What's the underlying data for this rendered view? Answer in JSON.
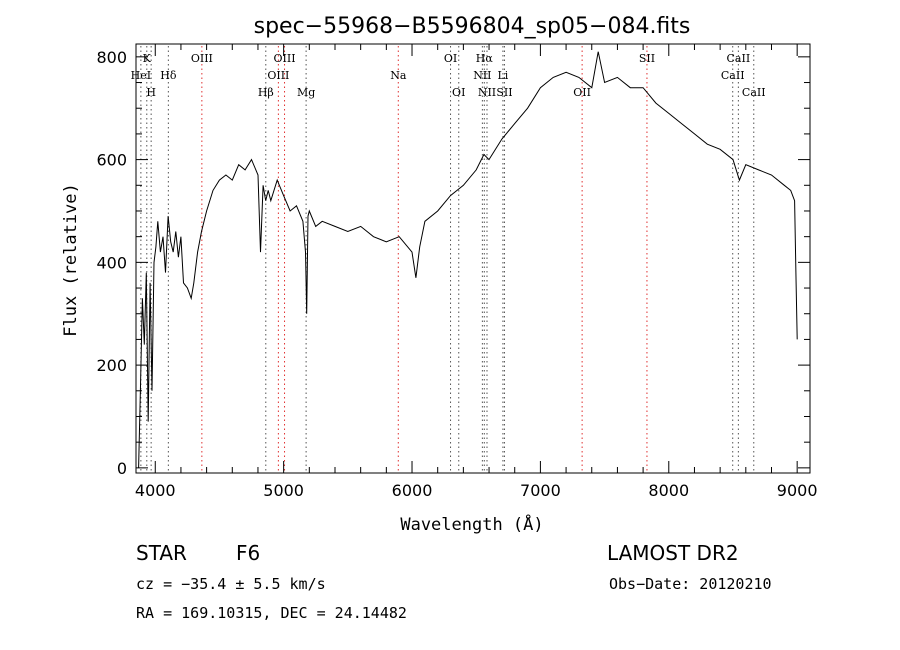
{
  "chart_data": {
    "type": "line",
    "title": "spec−55968−B5596804_sp05−084.fits",
    "xlabel": "Wavelength (Å)",
    "ylabel": "Flux (relative)",
    "xlim": [
      3850,
      9100
    ],
    "ylim": [
      -10,
      825
    ],
    "x_ticks": [
      4000,
      5000,
      6000,
      7000,
      8000,
      9000
    ],
    "y_ticks": [
      0,
      200,
      400,
      600,
      800
    ],
    "grid": false,
    "line_color": "#000000",
    "marker_color": "#e03030",
    "series": [
      {
        "x": [
          3870,
          3885,
          3900,
          3915,
          3930,
          3945,
          3960,
          3975,
          3990,
          4005,
          4020,
          4040,
          4060,
          4080,
          4100,
          4120,
          4140,
          4160,
          4180,
          4200,
          4220,
          4250,
          4280,
          4300,
          4330,
          4360,
          4400,
          4450,
          4500,
          4550,
          4600,
          4650,
          4700,
          4750,
          4800,
          4820,
          4840,
          4860,
          4880,
          4900,
          4950,
          5000,
          5050,
          5100,
          5150,
          5170,
          5180,
          5190,
          5200,
          5250,
          5300,
          5400,
          5500,
          5600,
          5700,
          5800,
          5900,
          6000,
          6030,
          6060,
          6100,
          6200,
          6300,
          6400,
          6500,
          6560,
          6600,
          6700,
          6800,
          6900,
          7000,
          7100,
          7200,
          7300,
          7400,
          7450,
          7500,
          7600,
          7700,
          7800,
          7900,
          8000,
          8100,
          8200,
          8300,
          8400,
          8500,
          8550,
          8600,
          8700,
          8800,
          8900,
          8950,
          8980,
          8990,
          9000
        ],
        "y": [
          0,
          160,
          330,
          240,
          380,
          90,
          360,
          150,
          400,
          430,
          480,
          420,
          450,
          380,
          490,
          440,
          420,
          460,
          410,
          450,
          360,
          350,
          330,
          360,
          420,
          460,
          500,
          540,
          560,
          570,
          560,
          590,
          580,
          600,
          570,
          420,
          550,
          520,
          540,
          520,
          560,
          530,
          500,
          510,
          480,
          420,
          300,
          490,
          500,
          470,
          480,
          470,
          460,
          470,
          450,
          440,
          450,
          420,
          370,
          430,
          480,
          500,
          530,
          550,
          580,
          610,
          600,
          640,
          670,
          700,
          740,
          760,
          770,
          760,
          740,
          810,
          750,
          760,
          740,
          740,
          710,
          690,
          670,
          650,
          630,
          620,
          600,
          560,
          590,
          580,
          570,
          550,
          540,
          520,
          380,
          250
        ]
      }
    ],
    "annotations": [
      {
        "label": "K",
        "x": 3934,
        "row": 0
      },
      {
        "label": "HeI",
        "x": 3888,
        "row": 1
      },
      {
        "label": "Hδ",
        "x": 4102,
        "row": 1
      },
      {
        "label": "H",
        "x": 3968,
        "row": 2
      },
      {
        "label": "OIII",
        "x": 4363,
        "row": 0
      },
      {
        "label": "OIII",
        "x": 5007,
        "row": 0
      },
      {
        "label": "OIII",
        "x": 4959,
        "row": 1
      },
      {
        "label": "Hβ",
        "x": 4861,
        "row": 2
      },
      {
        "label": "Mg",
        "x": 5175,
        "row": 2
      },
      {
        "label": "Na",
        "x": 5893,
        "row": 1
      },
      {
        "label": "OI",
        "x": 6300,
        "row": 0
      },
      {
        "label": "Hα",
        "x": 6563,
        "row": 0
      },
      {
        "label": "NII",
        "x": 6548,
        "row": 1
      },
      {
        "label": "Li",
        "x": 6708,
        "row": 1
      },
      {
        "label": "OI",
        "x": 6364,
        "row": 2
      },
      {
        "label": "NII",
        "x": 6584,
        "row": 2
      },
      {
        "label": "SII",
        "x": 6720,
        "row": 2
      },
      {
        "label": "OII",
        "x": 7325,
        "row": 2
      },
      {
        "label": "SII",
        "x": 7830,
        "row": 0
      },
      {
        "label": "CaII",
        "x": 8542,
        "row": 0
      },
      {
        "label": "CaII",
        "x": 8498,
        "row": 1
      },
      {
        "label": "CaII",
        "x": 8662,
        "row": 2
      }
    ],
    "marker_lines": [
      {
        "x": 3888,
        "style": "black"
      },
      {
        "x": 3934,
        "style": "black"
      },
      {
        "x": 3968,
        "style": "black"
      },
      {
        "x": 4102,
        "style": "black"
      },
      {
        "x": 4363,
        "style": "red"
      },
      {
        "x": 4861,
        "style": "black"
      },
      {
        "x": 4959,
        "style": "red"
      },
      {
        "x": 5007,
        "style": "red"
      },
      {
        "x": 5175,
        "style": "black"
      },
      {
        "x": 5893,
        "style": "red"
      },
      {
        "x": 6300,
        "style": "black"
      },
      {
        "x": 6364,
        "style": "black"
      },
      {
        "x": 6548,
        "style": "black"
      },
      {
        "x": 6563,
        "style": "black"
      },
      {
        "x": 6584,
        "style": "black"
      },
      {
        "x": 6708,
        "style": "black"
      },
      {
        "x": 6720,
        "style": "black"
      },
      {
        "x": 7325,
        "style": "red"
      },
      {
        "x": 7830,
        "style": "red"
      },
      {
        "x": 8498,
        "style": "black"
      },
      {
        "x": 8542,
        "style": "black"
      },
      {
        "x": 8662,
        "style": "black"
      }
    ]
  },
  "info": {
    "object_class": "STAR",
    "subclass": "F6",
    "survey": "LAMOST DR2",
    "cz": "cz = −35.4 ± 5.5 km/s",
    "obs_date": "Obs−Date: 20120210",
    "coords": "RA = 169.10315, DEC =  24.14482"
  }
}
